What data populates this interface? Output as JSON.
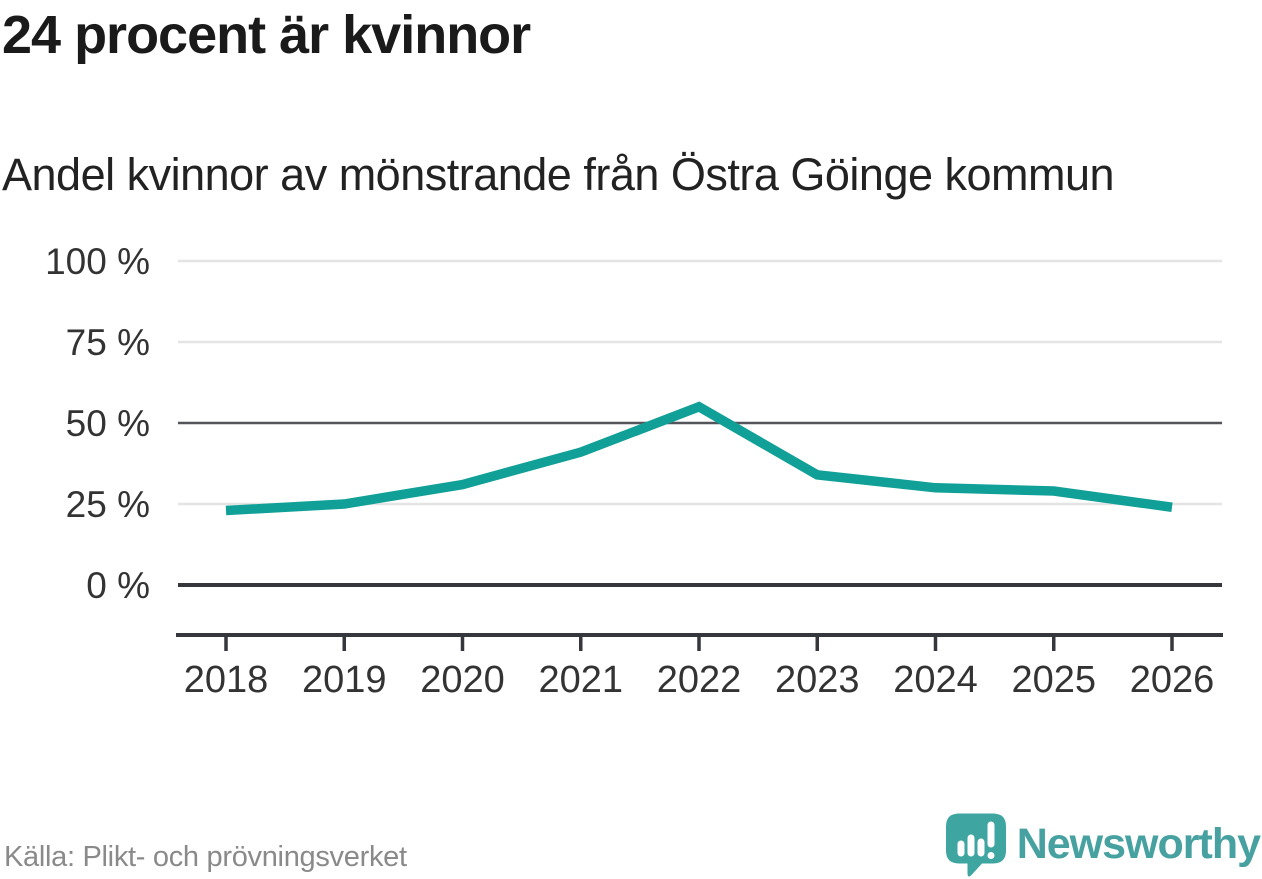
{
  "header": {
    "title": "24 procent är kvinnor",
    "subtitle": "Andel kvinnor av mönstrande från Östra Göinge kommun"
  },
  "chart_data": {
    "type": "line",
    "title": "24 procent är kvinnor",
    "subtitle": "Andel kvinnor av mönstrande från Östra Göinge kommun",
    "categories": [
      "2018",
      "2019",
      "2020",
      "2021",
      "2022",
      "2023",
      "2024",
      "2025",
      "2026"
    ],
    "series": [
      {
        "name": "Andel kvinnor av mönstrande, Östra Göinge kommun",
        "values": [
          23,
          25,
          31,
          41,
          55,
          34,
          30,
          29,
          24
        ]
      }
    ],
    "unit": "%",
    "xlabel": "",
    "ylabel": "",
    "ylim": [
      0,
      100
    ],
    "grid": "horizontal",
    "legend": "none",
    "y_ticks": [
      {
        "value": 100,
        "label": "100 %",
        "emphasis": "light"
      },
      {
        "value": 75,
        "label": "75 %",
        "emphasis": "light"
      },
      {
        "value": 50,
        "label": "50 %",
        "emphasis": "mid"
      },
      {
        "value": 25,
        "label": "25 %",
        "emphasis": "light"
      },
      {
        "value": 0,
        "label": "0 %",
        "emphasis": "strong"
      }
    ]
  },
  "footer": {
    "source": "Källa: Plikt- och prövningsverket",
    "brand": "Newsworthy",
    "logo_icon": "newsworthy-bubble-barchart-icon"
  },
  "colors": {
    "line": "#10a097",
    "grid_light": "#e4e4e4",
    "grid_mid": "#54555b",
    "axis": "#36373c",
    "tick_text": "#333333",
    "title_text": "#1a1a1a",
    "source_text": "#8a8a8a",
    "brand_teal": "#47a1a1",
    "logo_teal": "#3ea5a1"
  }
}
